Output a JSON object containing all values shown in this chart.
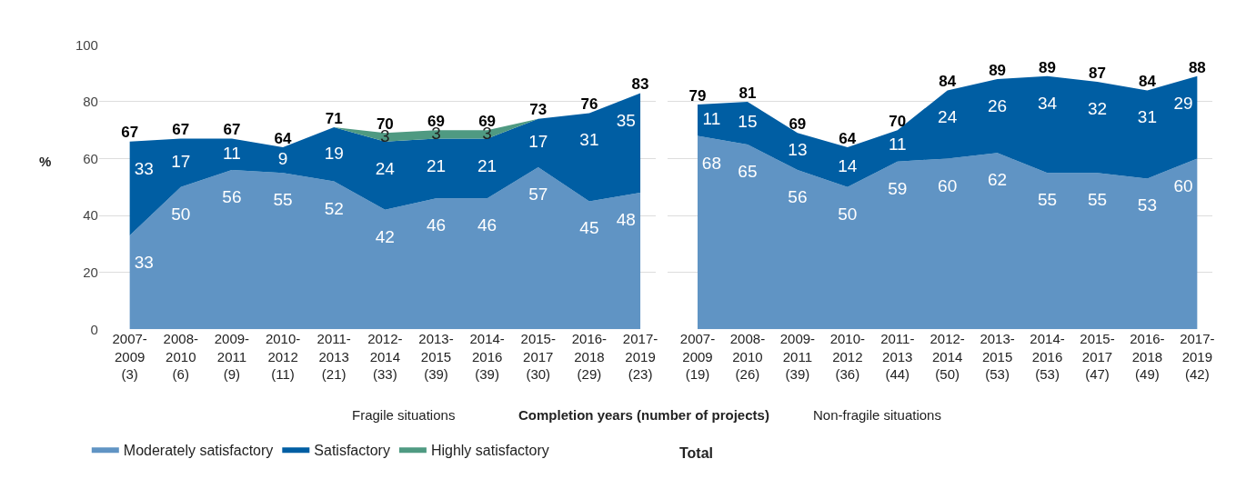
{
  "chart_data": [
    {
      "type": "area",
      "title": "Fragile situations",
      "xlabel": "Completion years (number of projects)",
      "ylabel": "%",
      "stacked": true,
      "grid": "y",
      "legend": "bottom left",
      "ylim": [
        0,
        100
      ],
      "yticks": [
        0,
        20,
        40,
        60,
        80,
        100
      ],
      "categories": [
        "2007-\n2009\n(3)",
        "2008-\n2010\n(6)",
        "2009-\n2011\n(9)",
        "2010-\n2012\n(11)",
        "2011-\n2013\n(21)",
        "2012-\n2014\n(33)",
        "2013-\n2015\n(39)",
        "2014-\n2016\n(39)",
        "2015-\n2017\n(30)",
        "2016-\n2018\n(29)",
        "2017-\n2019\n(23)"
      ],
      "series": [
        {
          "name": "Moderately satisfactory",
          "color": "#6094c4",
          "values": [
            33,
            50,
            56,
            55,
            52,
            42,
            46,
            46,
            57,
            45,
            48
          ],
          "value_labels": [
            "33",
            "50",
            "56",
            "55",
            "52",
            "42",
            "46",
            "46",
            "57",
            "45",
            "48"
          ]
        },
        {
          "name": "Satisfactory",
          "color": "#005ea3",
          "values": [
            33,
            17,
            11,
            9,
            19,
            24,
            21,
            21,
            17,
            31,
            35
          ],
          "value_labels": [
            "33",
            "17",
            "11",
            "9",
            "19",
            "24",
            "21",
            "21",
            "17",
            "31",
            "35"
          ]
        },
        {
          "name": "Highly satisfactory",
          "color": "#4f9a82",
          "values": [
            null,
            null,
            null,
            null,
            0,
            3,
            3,
            3,
            0,
            null,
            null
          ],
          "value_labels": [
            null,
            null,
            null,
            null,
            null,
            "3",
            "3",
            "3",
            null,
            null,
            null
          ]
        }
      ],
      "totals": [
        "67",
        "67",
        "67",
        "64",
        "71",
        "70",
        "69",
        "69",
        "73",
        "76",
        "83"
      ],
      "annotations": [
        "Total"
      ]
    },
    {
      "type": "area",
      "title": "Non-fragile situations",
      "stacked": true,
      "grid": "y",
      "tick_labels": "x",
      "ylim": [
        0,
        100
      ],
      "yticks": [
        0,
        20,
        40,
        60,
        80,
        100
      ],
      "categories": [
        "2007-\n2009\n(19)",
        "2008-\n2010\n(26)",
        "2009-\n2011\n(39)",
        "2010-\n2012\n(36)",
        "2011-\n2013\n(44)",
        "2012-\n2014\n(50)",
        "2013-\n2015\n(53)",
        "2014-\n2016\n(53)",
        "2015-\n2017\n(47)",
        "2016-\n2018\n(49)",
        "2017-\n2019\n(42)"
      ],
      "series": [
        {
          "color": "#6094c4",
          "values": [
            68,
            65,
            56,
            50,
            59,
            60,
            62,
            55,
            55,
            53,
            60
          ],
          "value_labels": [
            "68",
            "65",
            "56",
            "50",
            "59",
            "60",
            "62",
            "55",
            "55",
            "53",
            "60"
          ]
        },
        {
          "color": "#005ea3",
          "values": [
            11,
            15,
            13,
            14,
            11,
            24,
            26,
            34,
            32,
            31,
            29
          ],
          "value_labels": [
            "11",
            "15",
            "13",
            "14",
            "11",
            "24",
            "26",
            "34",
            "32",
            "31",
            "29"
          ]
        }
      ],
      "totals": [
        "79",
        "81",
        "69",
        "64",
        "70",
        "84",
        "89",
        "89",
        "87",
        "84",
        "88"
      ]
    }
  ]
}
